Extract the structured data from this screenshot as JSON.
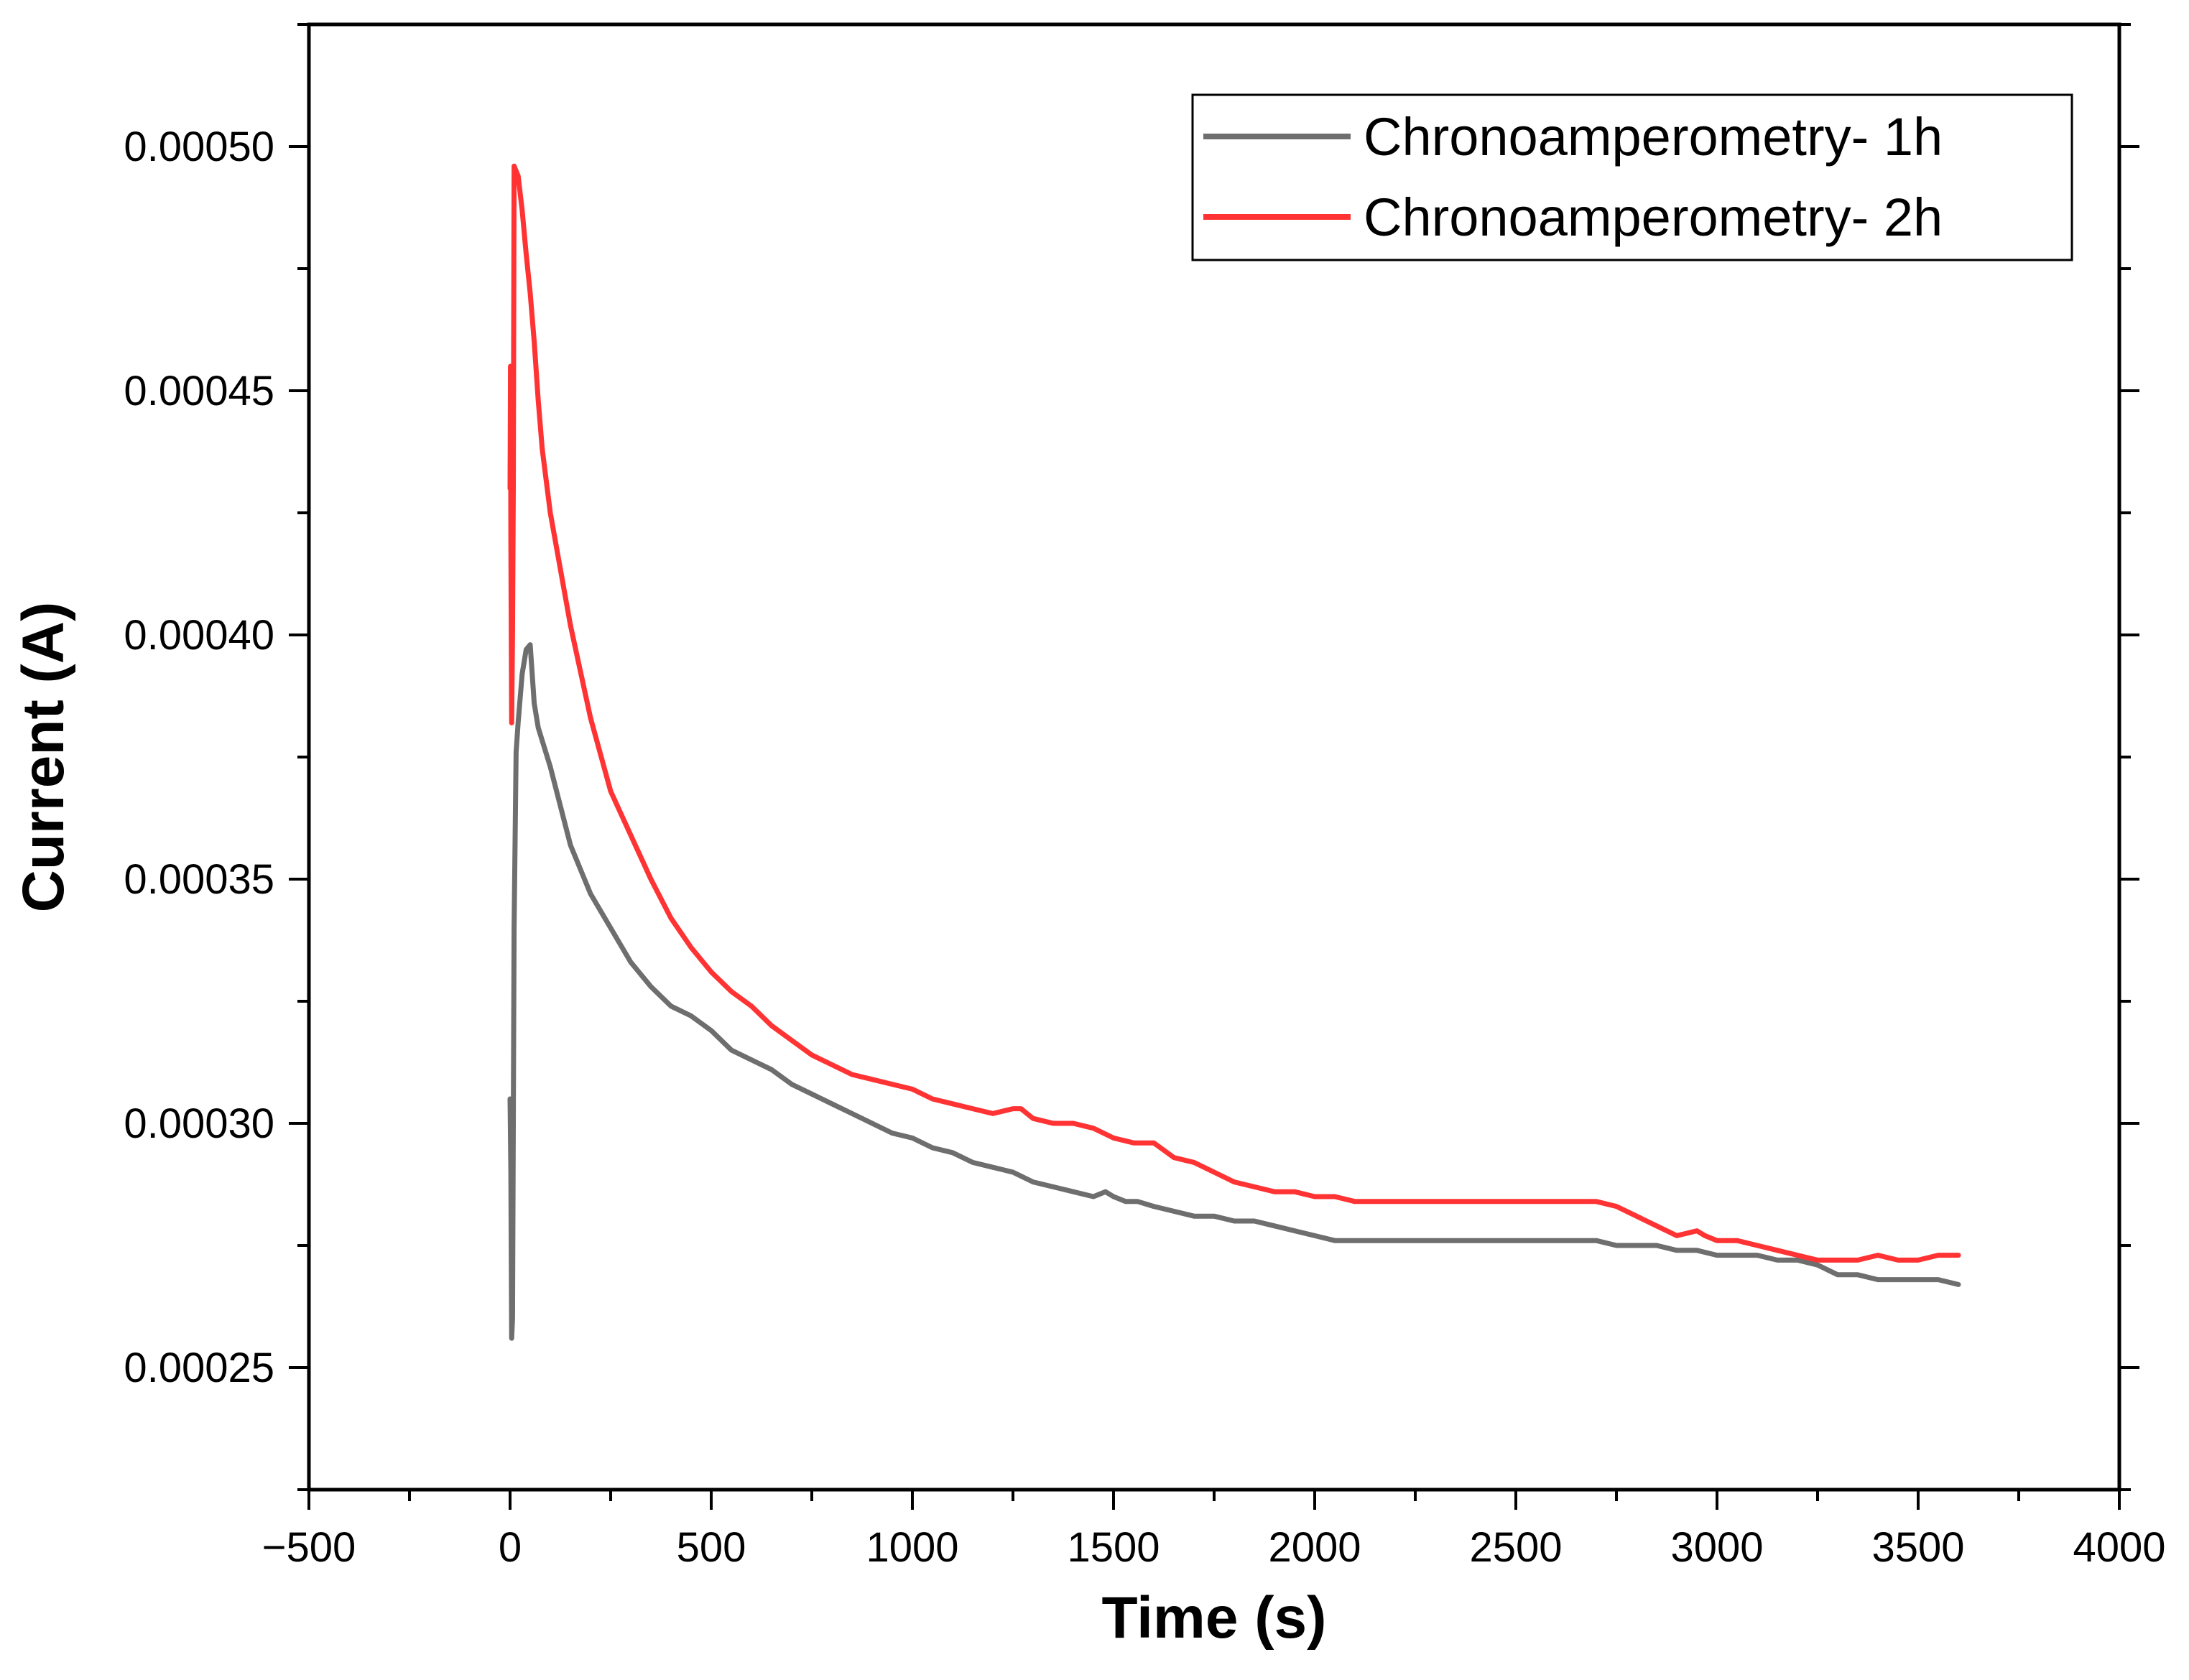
{
  "chart_data": {
    "type": "line",
    "title": "",
    "xlabel": "Time (s)",
    "ylabel": "Current (A)",
    "xlim": [
      -500,
      4000
    ],
    "ylim": [
      0.000225,
      0.000525
    ],
    "x_ticks": [
      -500,
      0,
      500,
      1000,
      1500,
      2000,
      2500,
      3000,
      3500,
      4000
    ],
    "x_tick_labels": [
      "−500",
      "0",
      "500",
      "1000",
      "1500",
      "2000",
      "2500",
      "3000",
      "3500",
      "4000"
    ],
    "y_ticks": [
      0.00025,
      0.0003,
      0.00035,
      0.0004,
      0.00045,
      0.0005
    ],
    "y_tick_labels": [
      "0.00025",
      "0.00030",
      "0.00035",
      "0.00040",
      "0.00045",
      "0.00050"
    ],
    "legend_position": "top-right",
    "series": [
      {
        "name": "Chronoamperometry- 1h",
        "color": "#6e6e6e",
        "x": [
          0,
          2,
          4,
          6,
          8,
          10,
          15,
          20,
          30,
          40,
          50,
          60,
          70,
          100,
          150,
          200,
          250,
          300,
          350,
          400,
          450,
          500,
          550,
          600,
          650,
          700,
          750,
          800,
          850,
          900,
          950,
          1000,
          1050,
          1100,
          1150,
          1200,
          1250,
          1300,
          1350,
          1400,
          1450,
          1480,
          1500,
          1530,
          1560,
          1600,
          1650,
          1700,
          1750,
          1800,
          1850,
          1900,
          1950,
          2000,
          2050,
          2100,
          2200,
          2300,
          2400,
          2500,
          2600,
          2700,
          2750,
          2800,
          2850,
          2900,
          2950,
          3000,
          3050,
          3100,
          3150,
          3200,
          3250,
          3300,
          3350,
          3400,
          3450,
          3500,
          3550,
          3600
        ],
        "values": [
          0.000305,
          0.00029,
          0.000256,
          0.00026,
          0.0003,
          0.00034,
          0.000376,
          0.000382,
          0.000392,
          0.000397,
          0.000398,
          0.000386,
          0.000381,
          0.000373,
          0.000357,
          0.000347,
          0.00034,
          0.000333,
          0.000328,
          0.000324,
          0.000322,
          0.000319,
          0.000315,
          0.000313,
          0.000311,
          0.000308,
          0.000306,
          0.000304,
          0.000302,
          0.0003,
          0.000298,
          0.000297,
          0.000295,
          0.000294,
          0.000292,
          0.000291,
          0.00029,
          0.000288,
          0.000287,
          0.000286,
          0.000285,
          0.000286,
          0.000285,
          0.000284,
          0.000284,
          0.000283,
          0.000282,
          0.000281,
          0.000281,
          0.00028,
          0.00028,
          0.000279,
          0.000278,
          0.000277,
          0.000276,
          0.000276,
          0.000276,
          0.000276,
          0.000276,
          0.000276,
          0.000276,
          0.000276,
          0.000275,
          0.000275,
          0.000275,
          0.000274,
          0.000274,
          0.000273,
          0.000273,
          0.000273,
          0.000272,
          0.000272,
          0.000271,
          0.000269,
          0.000269,
          0.000268,
          0.000268,
          0.000268,
          0.000268,
          0.000267
        ]
      },
      {
        "name": "Chronoamperometry- 2h",
        "color": "#ff3333",
        "x": [
          0,
          1,
          2,
          3,
          4,
          6,
          8,
          10,
          20,
          30,
          40,
          50,
          60,
          70,
          80,
          100,
          150,
          200,
          250,
          300,
          350,
          400,
          450,
          500,
          550,
          600,
          650,
          700,
          750,
          800,
          850,
          900,
          950,
          1000,
          1050,
          1100,
          1150,
          1200,
          1250,
          1270,
          1300,
          1350,
          1400,
          1450,
          1500,
          1550,
          1600,
          1650,
          1700,
          1750,
          1800,
          1850,
          1900,
          1950,
          2000,
          2050,
          2100,
          2200,
          2300,
          2400,
          2500,
          2600,
          2700,
          2750,
          2800,
          2850,
          2900,
          2950,
          2970,
          3000,
          3050,
          3100,
          3150,
          3200,
          3250,
          3300,
          3350,
          3400,
          3450,
          3500,
          3550,
          3580,
          3600
        ],
        "values": [
          0.00043,
          0.000455,
          0.00042,
          0.000399,
          0.000382,
          0.0004,
          0.00043,
          0.000496,
          0.000494,
          0.000487,
          0.000478,
          0.00047,
          0.00046,
          0.000448,
          0.000438,
          0.000425,
          0.000402,
          0.000383,
          0.000368,
          0.000359,
          0.00035,
          0.000342,
          0.000336,
          0.000331,
          0.000327,
          0.000324,
          0.00032,
          0.000317,
          0.000314,
          0.000312,
          0.00031,
          0.000309,
          0.000308,
          0.000307,
          0.000305,
          0.000304,
          0.000303,
          0.000302,
          0.000303,
          0.000303,
          0.000301,
          0.0003,
          0.0003,
          0.000299,
          0.000297,
          0.000296,
          0.000296,
          0.000293,
          0.000292,
          0.00029,
          0.000288,
          0.000287,
          0.000286,
          0.000286,
          0.000285,
          0.000285,
          0.000284,
          0.000284,
          0.000284,
          0.000284,
          0.000284,
          0.000284,
          0.000284,
          0.000283,
          0.000281,
          0.000279,
          0.000277,
          0.000278,
          0.000277,
          0.000276,
          0.000276,
          0.000275,
          0.000274,
          0.000273,
          0.000272,
          0.000272,
          0.000272,
          0.000273,
          0.000272,
          0.000272,
          0.000273,
          0.000273,
          0.000273
        ]
      }
    ]
  }
}
